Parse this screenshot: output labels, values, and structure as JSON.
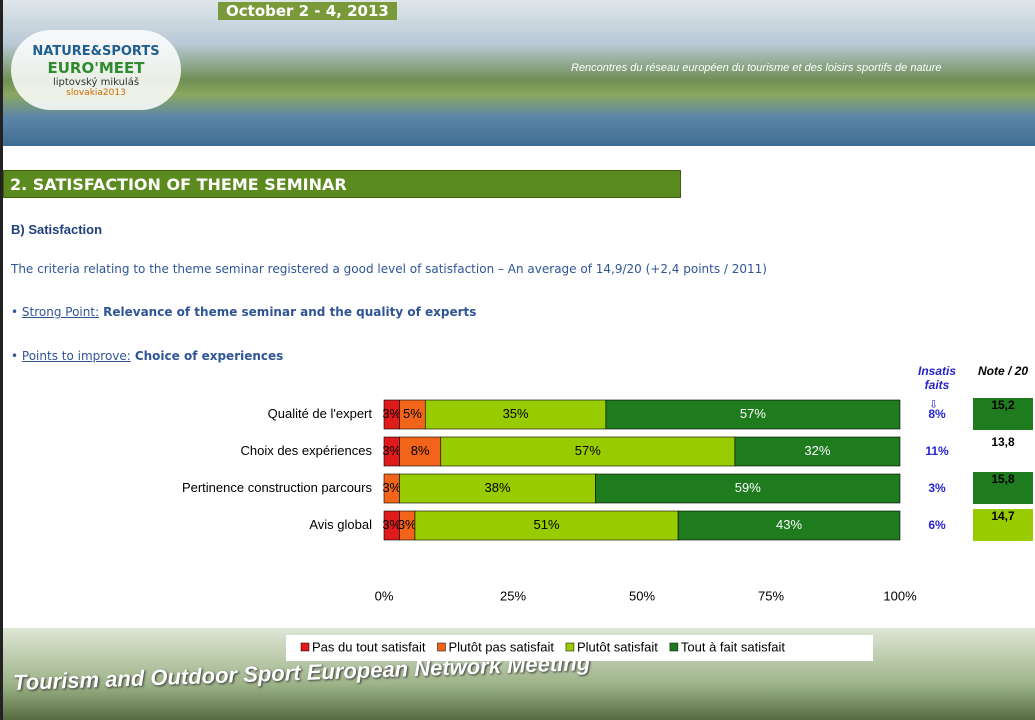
{
  "header": {
    "dates": "October 2 - 4, 2013",
    "logo_line1": "NATURE&SPORTS",
    "logo_line2": "EURO'MEET",
    "logo_line3": "liptovský mikuláš",
    "logo_line4": "slovakia2013",
    "tagline": "Rencontres du réseau européen du tourisme et des loisirs sportifs de nature"
  },
  "section_title": "2.   SATISFACTION OF THEME SEMINAR",
  "subtitle": "B) Satisfaction",
  "intro": "The criteria relating to the theme seminar registered a good level of satisfaction – An average of 14,9/20 (+2,4 points / 2011)",
  "bullets": [
    {
      "label": "Strong Point:",
      "text": "Relevance of theme seminar and the quality of experts"
    },
    {
      "label": "Points to improve:",
      "text": "Choice of experiences"
    }
  ],
  "side_table": {
    "headers": [
      "Insatis faits",
      "Note / 20"
    ],
    "rows": [
      [
        "8%",
        "15,2"
      ],
      [
        "11%",
        "13,8"
      ],
      [
        "3%",
        "15,8"
      ],
      [
        "6%",
        "14,7"
      ]
    ]
  },
  "footer": "Tourism and Outdoor Sport European Network Meeting",
  "chart_data": {
    "type": "bar",
    "orientation": "horizontal",
    "stacked": true,
    "categories": [
      "Qualité de l'expert",
      "Choix des expériences",
      "Pertinence construction parcours",
      "Avis global"
    ],
    "series": [
      {
        "name": "Pas du tout satisfait",
        "color": "#e01b1b",
        "values": [
          3,
          3,
          null,
          3
        ],
        "value_labels": [
          "3%",
          "3%",
          null,
          "3%"
        ]
      },
      {
        "name": "Plutôt pas satisfait",
        "color": "#f2641a",
        "values": [
          5,
          8,
          3,
          3
        ],
        "value_labels": [
          "5%",
          "8%",
          "3%",
          "3%"
        ]
      },
      {
        "name": "Plutôt satisfait",
        "color": "#99cc00",
        "values": [
          35,
          57,
          38,
          51
        ],
        "value_labels": [
          "35%",
          "57%",
          "38%",
          "51%"
        ]
      },
      {
        "name": "Tout à fait satisfait",
        "color": "#1e7b1e",
        "values": [
          57,
          32,
          59,
          43
        ],
        "value_labels": [
          "57%",
          "32%",
          "59%",
          "43%"
        ]
      }
    ],
    "xlim": [
      0,
      100
    ],
    "xticks": [
      {
        "value": 0,
        "label": "0%"
      },
      {
        "value": 25,
        "label": "25%"
      },
      {
        "value": 50,
        "label": "50%"
      },
      {
        "value": 75,
        "label": "75%"
      },
      {
        "value": 100,
        "label": "100%"
      }
    ],
    "legend": "bottom"
  }
}
